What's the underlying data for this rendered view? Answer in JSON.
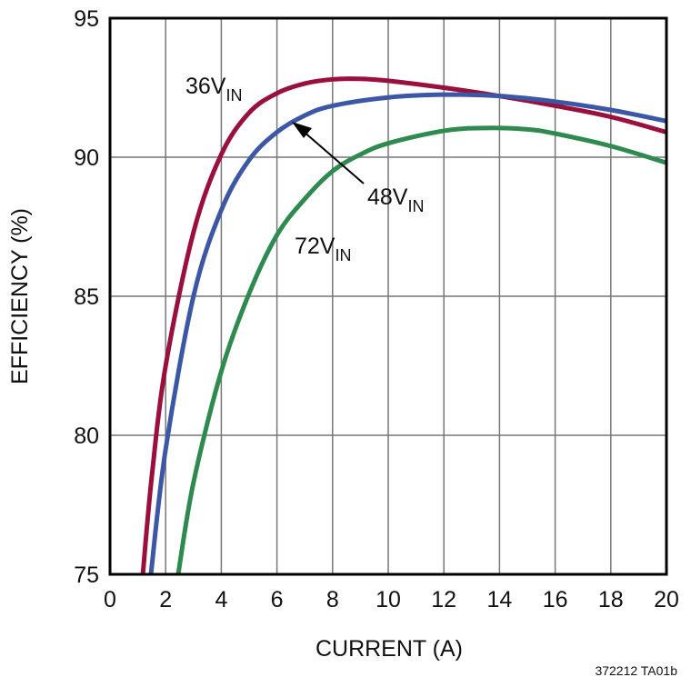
{
  "chart_data": {
    "type": "line",
    "xlabel": "CURRENT (A)",
    "ylabel": "EFFICIENCY (%)",
    "xlim": [
      0,
      20
    ],
    "ylim": [
      75,
      95
    ],
    "xticks": [
      0,
      2,
      4,
      6,
      8,
      10,
      12,
      14,
      16,
      18,
      20
    ],
    "yticks": [
      75,
      80,
      85,
      90,
      95
    ],
    "grid": true,
    "series": [
      {
        "name": "36V",
        "subscript": "IN",
        "color": "#9a0f3c",
        "points": [
          [
            1.18,
            75
          ],
          [
            1.5,
            78.5
          ],
          [
            2,
            82.5
          ],
          [
            3,
            87.3
          ],
          [
            4,
            90.1
          ],
          [
            5,
            91.6
          ],
          [
            6,
            92.3
          ],
          [
            7,
            92.65
          ],
          [
            8,
            92.8
          ],
          [
            9,
            92.82
          ],
          [
            10,
            92.75
          ],
          [
            12,
            92.5
          ],
          [
            14,
            92.2
          ],
          [
            16,
            91.85
          ],
          [
            18,
            91.45
          ],
          [
            20,
            90.9
          ]
        ]
      },
      {
        "name": "48V",
        "subscript": "IN",
        "color": "#3b57a6",
        "points": [
          [
            1.47,
            75
          ],
          [
            2,
            79.5
          ],
          [
            3,
            85
          ],
          [
            4,
            88.1
          ],
          [
            5,
            89.9
          ],
          [
            6,
            90.9
          ],
          [
            7,
            91.5
          ],
          [
            8,
            91.85
          ],
          [
            10,
            92.15
          ],
          [
            12,
            92.25
          ],
          [
            14,
            92.2
          ],
          [
            16,
            92.0
          ],
          [
            18,
            91.7
          ],
          [
            20,
            91.3
          ]
        ]
      },
      {
        "name": "72V",
        "subscript": "IN",
        "color": "#2e8a4f",
        "points": [
          [
            2.45,
            75
          ],
          [
            3,
            78.3
          ],
          [
            4,
            82.3
          ],
          [
            5,
            85.1
          ],
          [
            6,
            87.2
          ],
          [
            7,
            88.5
          ],
          [
            8,
            89.5
          ],
          [
            9,
            90.1
          ],
          [
            10,
            90.5
          ],
          [
            12,
            90.95
          ],
          [
            13.5,
            91.05
          ],
          [
            15,
            91.0
          ],
          [
            16,
            90.85
          ],
          [
            18,
            90.4
          ],
          [
            20,
            89.8
          ]
        ]
      }
    ],
    "annotations": [
      "372212 TA01b"
    ]
  }
}
